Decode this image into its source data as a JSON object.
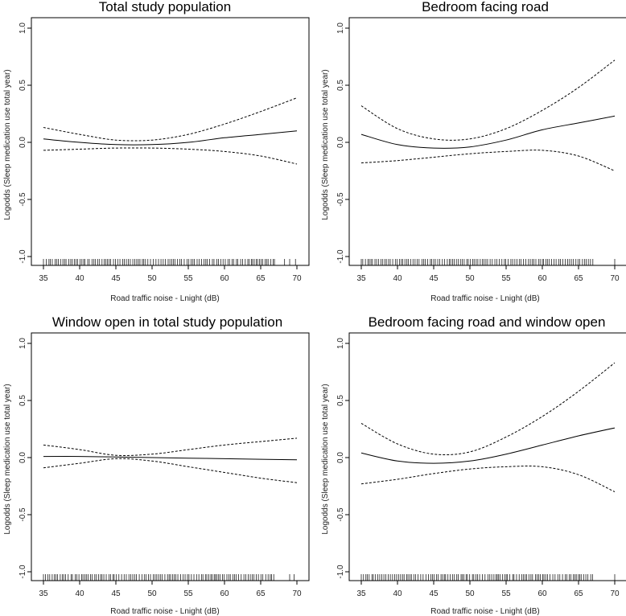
{
  "figure": {
    "panel_count": 4
  },
  "chart_data": [
    {
      "type": "line",
      "title": "Total study population",
      "xlabel": "Road traffic noise - Lnight (dB)",
      "ylabel": "Logodds (Sleep medication use total year)",
      "xlim": [
        35,
        70
      ],
      "ylim": [
        -1.0,
        1.0
      ],
      "xticks": [
        35,
        40,
        45,
        50,
        55,
        60,
        65,
        70
      ],
      "yticks": [
        -1.0,
        -0.5,
        0.0,
        0.5,
        1.0
      ],
      "x": [
        35,
        40,
        45,
        50,
        55,
        60,
        65,
        70
      ],
      "series": [
        {
          "name": "estimate",
          "style": "solid",
          "values": [
            0.03,
            0.0,
            -0.02,
            -0.02,
            0.0,
            0.04,
            0.07,
            0.1
          ]
        },
        {
          "name": "upper 95% CI",
          "style": "dashed",
          "values": [
            0.13,
            0.07,
            0.02,
            0.02,
            0.07,
            0.16,
            0.27,
            0.39
          ]
        },
        {
          "name": "lower 95% CI",
          "style": "dashed",
          "values": [
            -0.07,
            -0.06,
            -0.05,
            -0.05,
            -0.06,
            -0.08,
            -0.12,
            -0.19
          ]
        }
      ],
      "rug": "dense 35-67, sparse 68-70"
    },
    {
      "type": "line",
      "title": "Bedroom facing road",
      "xlabel": "Road traffic noise - Lnight (dB)",
      "ylabel": "Logodds (Sleep medication use total year)",
      "xlim": [
        35,
        70
      ],
      "ylim": [
        -1.0,
        1.0
      ],
      "xticks": [
        35,
        40,
        45,
        50,
        55,
        60,
        65,
        70
      ],
      "yticks": [
        -1.0,
        -0.5,
        0.0,
        0.5,
        1.0
      ],
      "x": [
        35,
        40,
        45,
        50,
        55,
        60,
        65,
        70
      ],
      "series": [
        {
          "name": "estimate",
          "style": "solid",
          "values": [
            0.07,
            -0.02,
            -0.05,
            -0.04,
            0.02,
            0.11,
            0.17,
            0.23
          ]
        },
        {
          "name": "upper 95% CI",
          "style": "dashed",
          "values": [
            0.32,
            0.12,
            0.03,
            0.03,
            0.12,
            0.28,
            0.48,
            0.72
          ]
        },
        {
          "name": "lower 95% CI",
          "style": "dashed",
          "values": [
            -0.18,
            -0.16,
            -0.13,
            -0.1,
            -0.08,
            -0.07,
            -0.12,
            -0.25
          ]
        }
      ],
      "rug": "dense 35-67, single at 70"
    },
    {
      "type": "line",
      "title": "Window open in total study population",
      "xlabel": "Road traffic noise - Lnight (dB)",
      "ylabel": "Logodds (Sleep medication use total year)",
      "xlim": [
        35,
        70
      ],
      "ylim": [
        -1.0,
        1.0
      ],
      "xticks": [
        35,
        40,
        45,
        50,
        55,
        60,
        65,
        70
      ],
      "yticks": [
        -1.0,
        -0.5,
        0.0,
        0.5,
        1.0
      ],
      "x": [
        35,
        40,
        45,
        50,
        55,
        60,
        65,
        70
      ],
      "series": [
        {
          "name": "estimate",
          "style": "solid",
          "values": [
            0.01,
            0.01,
            0.005,
            0.0,
            -0.005,
            -0.01,
            -0.015,
            -0.02
          ]
        },
        {
          "name": "upper 95% CI",
          "style": "dashed",
          "values": [
            0.11,
            0.07,
            0.02,
            0.03,
            0.07,
            0.11,
            0.14,
            0.17
          ]
        },
        {
          "name": "lower 95% CI",
          "style": "dashed",
          "values": [
            -0.09,
            -0.05,
            -0.01,
            -0.03,
            -0.08,
            -0.13,
            -0.18,
            -0.22
          ]
        }
      ],
      "rug": "dense 35-67, sparse 69-70"
    },
    {
      "type": "line",
      "title": "Bedroom facing road and window open",
      "xlabel": "Road traffic noise - Lnight (dB)",
      "ylabel": "Logodds (Sleep medication use total year)",
      "xlim": [
        35,
        70
      ],
      "ylim": [
        -1.0,
        1.0
      ],
      "xticks": [
        35,
        40,
        45,
        50,
        55,
        60,
        65,
        70
      ],
      "yticks": [
        -1.0,
        -0.5,
        0.0,
        0.5,
        1.0
      ],
      "x": [
        35,
        40,
        45,
        50,
        55,
        60,
        65,
        70
      ],
      "series": [
        {
          "name": "estimate",
          "style": "solid",
          "values": [
            0.04,
            -0.03,
            -0.05,
            -0.03,
            0.03,
            0.11,
            0.19,
            0.26
          ]
        },
        {
          "name": "upper 95% CI",
          "style": "dashed",
          "values": [
            0.3,
            0.12,
            0.03,
            0.05,
            0.18,
            0.36,
            0.58,
            0.83
          ]
        },
        {
          "name": "lower 95% CI",
          "style": "dashed",
          "values": [
            -0.23,
            -0.19,
            -0.14,
            -0.1,
            -0.08,
            -0.08,
            -0.15,
            -0.3
          ]
        }
      ],
      "rug": "dense 35-67, single at 70"
    }
  ]
}
